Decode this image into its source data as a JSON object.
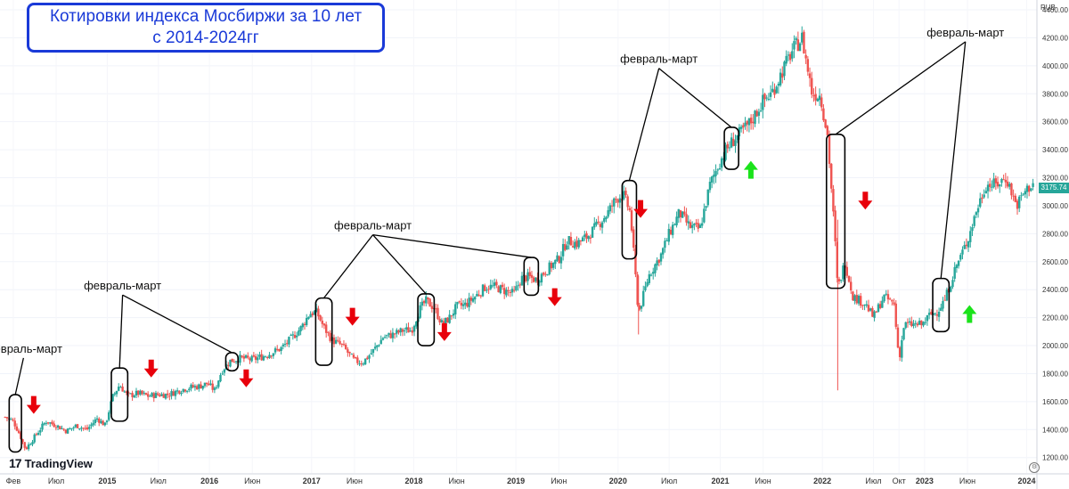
{
  "title_lines": [
    "Котировки индекса Мосбиржи за 10 лет",
    "с 2014-2024гг"
  ],
  "brand": "TradingView",
  "currency": "RUB",
  "last_price": "3175.74",
  "annotation_label": "февраль-март",
  "colors": {
    "up": "#26a69a",
    "down": "#ef5350",
    "arrow_down": "#e8000b",
    "arrow_up": "#1be31b",
    "title": "#1a3ad8"
  },
  "icons": {
    "arrow_down": "red-down-arrow-icon",
    "arrow_up": "green-up-arrow-icon",
    "settings": "gear-icon"
  },
  "chart_data": {
    "type": "candlestick",
    "title": "Котировки индекса Мосбиржи за 10 лет с 2014-2024гг",
    "y_axis": {
      "ticks": [
        1200,
        1400,
        1600,
        1800,
        2000,
        2200,
        2400,
        2600,
        2800,
        3000,
        3200,
        3400,
        3600,
        3800,
        4000,
        4200,
        4400
      ],
      "ylim": [
        1090,
        4470
      ],
      "position": "right"
    },
    "x_axis": {
      "ticks": [
        {
          "label": "Фев",
          "date": 2014.08
        },
        {
          "label": "Июл",
          "date": 2014.5
        },
        {
          "label": "2015",
          "date": 2015.0
        },
        {
          "label": "Июл",
          "date": 2015.5
        },
        {
          "label": "2016",
          "date": 2016.0
        },
        {
          "label": "Июн",
          "date": 2016.42
        },
        {
          "label": "2017",
          "date": 2017.0
        },
        {
          "label": "Июн",
          "date": 2017.42
        },
        {
          "label": "2018",
          "date": 2018.0
        },
        {
          "label": "Июн",
          "date": 2018.42
        },
        {
          "label": "2019",
          "date": 2019.0
        },
        {
          "label": "Июн",
          "date": 2019.42
        },
        {
          "label": "2020",
          "date": 2020.0
        },
        {
          "label": "Июл",
          "date": 2020.5
        },
        {
          "label": "2021",
          "date": 2021.0
        },
        {
          "label": "Июн",
          "date": 2021.42
        },
        {
          "label": "2022",
          "date": 2022.0
        },
        {
          "label": "Июл",
          "date": 2022.5
        },
        {
          "label": "Окт",
          "date": 2022.75
        },
        {
          "label": "2023",
          "date": 2023.0
        },
        {
          "label": "Июн",
          "date": 2023.42
        },
        {
          "label": "2024",
          "date": 2024.0
        }
      ]
    },
    "close_series": [
      [
        2014.0,
        1490
      ],
      [
        2014.08,
        1460
      ],
      [
        2014.14,
        1370
      ],
      [
        2014.2,
        1260
      ],
      [
        2014.28,
        1340
      ],
      [
        2014.4,
        1460
      ],
      [
        2014.5,
        1430
      ],
      [
        2014.6,
        1390
      ],
      [
        2014.7,
        1430
      ],
      [
        2014.8,
        1400
      ],
      [
        2014.9,
        1480
      ],
      [
        2014.98,
        1430
      ],
      [
        2015.05,
        1630
      ],
      [
        2015.12,
        1720
      ],
      [
        2015.2,
        1640
      ],
      [
        2015.3,
        1660
      ],
      [
        2015.4,
        1640
      ],
      [
        2015.5,
        1650
      ],
      [
        2015.6,
        1650
      ],
      [
        2015.7,
        1680
      ],
      [
        2015.8,
        1700
      ],
      [
        2015.9,
        1710
      ],
      [
        2015.98,
        1730
      ],
      [
        2016.05,
        1680
      ],
      [
        2016.12,
        1820
      ],
      [
        2016.2,
        1890
      ],
      [
        2016.3,
        1910
      ],
      [
        2016.42,
        1900
      ],
      [
        2016.55,
        1930
      ],
      [
        2016.7,
        1980
      ],
      [
        2016.8,
        2050
      ],
      [
        2016.9,
        2130
      ],
      [
        2016.98,
        2230
      ],
      [
        2017.05,
        2240
      ],
      [
        2017.12,
        2130
      ],
      [
        2017.2,
        2040
      ],
      [
        2017.3,
        2000
      ],
      [
        2017.42,
        1890
      ],
      [
        2017.5,
        1880
      ],
      [
        2017.6,
        1960
      ],
      [
        2017.7,
        2060
      ],
      [
        2017.8,
        2080
      ],
      [
        2017.9,
        2110
      ],
      [
        2017.98,
        2110
      ],
      [
        2018.05,
        2250
      ],
      [
        2018.12,
        2320
      ],
      [
        2018.2,
        2270
      ],
      [
        2018.28,
        2150
      ],
      [
        2018.35,
        2200
      ],
      [
        2018.42,
        2280
      ],
      [
        2018.5,
        2290
      ],
      [
        2018.6,
        2350
      ],
      [
        2018.7,
        2420
      ],
      [
        2018.8,
        2420
      ],
      [
        2018.9,
        2390
      ],
      [
        2018.98,
        2370
      ],
      [
        2019.05,
        2480
      ],
      [
        2019.12,
        2490
      ],
      [
        2019.2,
        2470
      ],
      [
        2019.3,
        2540
      ],
      [
        2019.42,
        2620
      ],
      [
        2019.5,
        2750
      ],
      [
        2019.6,
        2730
      ],
      [
        2019.7,
        2780
      ],
      [
        2019.8,
        2860
      ],
      [
        2019.9,
        2950
      ],
      [
        2019.98,
        3050
      ],
      [
        2020.05,
        3080
      ],
      [
        2020.12,
        2950
      ],
      [
        2020.2,
        2230
      ],
      [
        2020.3,
        2500
      ],
      [
        2020.42,
        2650
      ],
      [
        2020.5,
        2800
      ],
      [
        2020.6,
        2950
      ],
      [
        2020.7,
        2850
      ],
      [
        2020.8,
        2830
      ],
      [
        2020.9,
        3150
      ],
      [
        2020.98,
        3290
      ],
      [
        2021.05,
        3390
      ],
      [
        2021.12,
        3460
      ],
      [
        2021.2,
        3520
      ],
      [
        2021.3,
        3600
      ],
      [
        2021.42,
        3750
      ],
      [
        2021.5,
        3800
      ],
      [
        2021.6,
        3950
      ],
      [
        2021.7,
        4100
      ],
      [
        2021.8,
        4200
      ],
      [
        2021.9,
        3800
      ],
      [
        2021.98,
        3790
      ],
      [
        2022.05,
        3500
      ],
      [
        2022.12,
        2800
      ],
      [
        2022.15,
        2400
      ],
      [
        2022.22,
        2600
      ],
      [
        2022.3,
        2350
      ],
      [
        2022.42,
        2300
      ],
      [
        2022.5,
        2200
      ],
      [
        2022.6,
        2350
      ],
      [
        2022.7,
        2300
      ],
      [
        2022.75,
        1900
      ],
      [
        2022.8,
        2150
      ],
      [
        2022.9,
        2150
      ],
      [
        2022.98,
        2150
      ],
      [
        2023.05,
        2220
      ],
      [
        2023.12,
        2240
      ],
      [
        2023.2,
        2330
      ],
      [
        2023.3,
        2550
      ],
      [
        2023.42,
        2750
      ],
      [
        2023.5,
        2950
      ],
      [
        2023.6,
        3150
      ],
      [
        2023.7,
        3150
      ],
      [
        2023.8,
        3200
      ],
      [
        2023.9,
        3000
      ],
      [
        2023.98,
        3100
      ],
      [
        2024.08,
        3175
      ]
    ],
    "annotations": {
      "labels": [
        {
          "text": "февраль-март",
          "date": 2014.18,
          "price": 1950,
          "targets": [
            2014.1
          ]
        },
        {
          "text": "февраль-март",
          "date": 2015.15,
          "price": 2400,
          "targets": [
            2015.12,
            2016.2
          ]
        },
        {
          "text": "февраль-март",
          "date": 2017.6,
          "price": 2830,
          "targets": [
            2017.12,
            2018.12,
            2019.14
          ]
        },
        {
          "text": "февраль-март",
          "date": 2020.4,
          "price": 4020,
          "targets": [
            2020.1,
            2021.12
          ]
        },
        {
          "text": "февраль-март",
          "date": 2023.4,
          "price": 4210,
          "targets": [
            2022.16,
            2023.2
          ]
        }
      ],
      "boxes": [
        {
          "date_from": 2014.04,
          "date_to": 2014.16,
          "price_low": 1240,
          "price_high": 1650
        },
        {
          "date_from": 2015.04,
          "date_to": 2015.2,
          "price_low": 1460,
          "price_high": 1840
        },
        {
          "date_from": 2016.16,
          "date_to": 2016.28,
          "price_low": 1820,
          "price_high": 1950
        },
        {
          "date_from": 2017.04,
          "date_to": 2017.2,
          "price_low": 1860,
          "price_high": 2340
        },
        {
          "date_from": 2018.04,
          "date_to": 2018.2,
          "price_low": 2000,
          "price_high": 2370
        },
        {
          "date_from": 2019.08,
          "date_to": 2019.22,
          "price_low": 2360,
          "price_high": 2630
        },
        {
          "date_from": 2020.04,
          "date_to": 2020.18,
          "price_low": 2620,
          "price_high": 3180
        },
        {
          "date_from": 2021.04,
          "date_to": 2021.18,
          "price_low": 3260,
          "price_high": 3560
        },
        {
          "date_from": 2022.04,
          "date_to": 2022.22,
          "price_low": 2410,
          "price_high": 3510
        },
        {
          "date_from": 2023.08,
          "date_to": 2023.24,
          "price_low": 2100,
          "price_high": 2480
        }
      ],
      "arrows": [
        {
          "dir": "down",
          "date": 2014.28,
          "price": 1640
        },
        {
          "dir": "down",
          "date": 2015.43,
          "price": 1900
        },
        {
          "dir": "down",
          "date": 2016.36,
          "price": 1830
        },
        {
          "dir": "down",
          "date": 2017.4,
          "price": 2270
        },
        {
          "dir": "down",
          "date": 2018.3,
          "price": 2160
        },
        {
          "dir": "down",
          "date": 2019.38,
          "price": 2410
        },
        {
          "dir": "down",
          "date": 2020.22,
          "price": 3040
        },
        {
          "dir": "up",
          "date": 2021.3,
          "price": 3320
        },
        {
          "dir": "down",
          "date": 2022.42,
          "price": 3100
        },
        {
          "dir": "up",
          "date": 2023.44,
          "price": 2290
        }
      ]
    }
  }
}
